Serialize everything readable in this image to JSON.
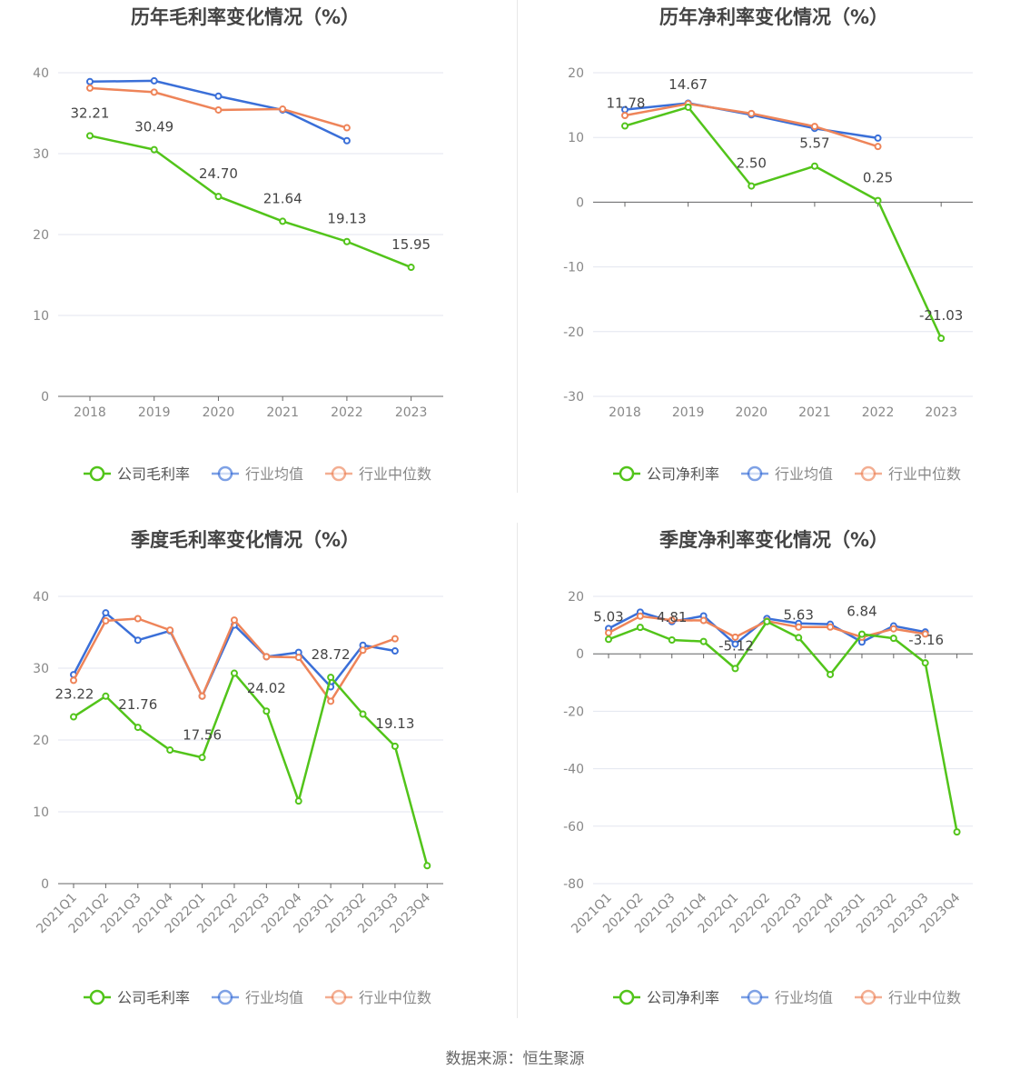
{
  "source_text": "数据来源：恒生聚源",
  "colors": {
    "company": "#52c41a",
    "avg": "#3a6fd8",
    "median": "#ee8459",
    "grid": "#e3e6ef",
    "axis": "#666666",
    "tick_text": "#888888",
    "title": "#444444"
  },
  "chart_data": [
    {
      "type": "line",
      "title": "历年毛利率变化情况（%）",
      "categories": [
        "2018",
        "2019",
        "2020",
        "2021",
        "2022",
        "2023"
      ],
      "ylim": [
        0,
        40
      ],
      "yticks": [
        0,
        10,
        20,
        30,
        40
      ],
      "grid": true,
      "legend": "bottom",
      "series": [
        {
          "name": "公司毛利率",
          "role": "company",
          "values": [
            32.21,
            30.49,
            24.7,
            21.64,
            19.13,
            15.95
          ],
          "labels": [
            "32.21",
            "30.49",
            "24.70",
            "21.64",
            "19.13",
            "15.95"
          ]
        },
        {
          "name": "行业均值",
          "role": "avg",
          "values": [
            38.9,
            39.0,
            37.1,
            35.4,
            31.6,
            null
          ]
        },
        {
          "name": "行业中位数",
          "role": "median",
          "values": [
            38.1,
            37.6,
            35.4,
            35.5,
            33.2,
            null
          ]
        }
      ]
    },
    {
      "type": "line",
      "title": "历年净利率变化情况（%）",
      "categories": [
        "2018",
        "2019",
        "2020",
        "2021",
        "2022",
        "2023"
      ],
      "ylim": [
        -30,
        20
      ],
      "yticks": [
        -30,
        -20,
        -10,
        0,
        10,
        20
      ],
      "grid": true,
      "legend": "bottom",
      "series": [
        {
          "name": "公司净利率",
          "role": "company",
          "values": [
            11.78,
            14.67,
            2.5,
            5.57,
            0.25,
            -21.03
          ],
          "labels": [
            "11.78",
            "14.67",
            "2.50",
            "5.57",
            "0.25",
            "-21.03"
          ]
        },
        {
          "name": "行业均值",
          "role": "avg",
          "values": [
            14.3,
            15.3,
            13.5,
            11.4,
            9.9,
            null
          ]
        },
        {
          "name": "行业中位数",
          "role": "median",
          "values": [
            13.4,
            15.2,
            13.7,
            11.7,
            8.6,
            null
          ]
        }
      ]
    },
    {
      "type": "line",
      "title": "季度毛利率变化情况（%）",
      "categories": [
        "2021Q1",
        "2021Q2",
        "2021Q3",
        "2021Q4",
        "2022Q1",
        "2022Q2",
        "2022Q3",
        "2022Q4",
        "2023Q1",
        "2023Q2",
        "2023Q3",
        "2023Q4"
      ],
      "ylim": [
        0,
        40
      ],
      "yticks": [
        0,
        10,
        20,
        30,
        40
      ],
      "grid": true,
      "legend": "bottom",
      "series": [
        {
          "name": "公司毛利率",
          "role": "company",
          "values": [
            23.22,
            26.1,
            21.76,
            18.6,
            17.56,
            29.3,
            24.02,
            11.5,
            28.72,
            23.6,
            19.13,
            2.5
          ],
          "labels": [
            "23.22",
            null,
            "21.76",
            null,
            "17.56",
            null,
            "24.02",
            null,
            "28.72",
            null,
            "19.13",
            null
          ]
        },
        {
          "name": "行业均值",
          "role": "avg",
          "values": [
            29.1,
            37.7,
            33.9,
            35.2,
            26.1,
            36.0,
            31.6,
            32.2,
            27.4,
            33.2,
            32.4,
            null
          ]
        },
        {
          "name": "行业中位数",
          "role": "median",
          "values": [
            28.3,
            36.6,
            36.9,
            35.3,
            26.1,
            36.7,
            31.6,
            31.5,
            25.4,
            32.5,
            34.1,
            null
          ]
        }
      ]
    },
    {
      "type": "line",
      "title": "季度净利率变化情况（%）",
      "categories": [
        "2021Q1",
        "2021Q2",
        "2021Q3",
        "2021Q4",
        "2022Q1",
        "2022Q2",
        "2022Q3",
        "2022Q4",
        "2023Q1",
        "2023Q2",
        "2023Q3",
        "2023Q4"
      ],
      "ylim": [
        -80,
        20
      ],
      "yticks": [
        -80,
        -60,
        -40,
        -20,
        0,
        20
      ],
      "grid": true,
      "legend": "bottom",
      "series": [
        {
          "name": "公司净利率",
          "role": "company",
          "values": [
            5.03,
            9.2,
            4.81,
            4.3,
            -5.12,
            11.2,
            5.63,
            -7.2,
            6.84,
            5.4,
            -3.16,
            -62.0
          ],
          "labels": [
            "5.03",
            null,
            "4.81",
            null,
            "-5.12",
            null,
            "5.63",
            null,
            "6.84",
            null,
            "-3.16",
            null
          ]
        },
        {
          "name": "行业均值",
          "role": "avg",
          "values": [
            8.8,
            14.5,
            11.2,
            13.2,
            3.4,
            12.3,
            10.6,
            10.3,
            4.1,
            9.7,
            7.6,
            null
          ]
        },
        {
          "name": "行业中位数",
          "role": "median",
          "values": [
            7.3,
            13.1,
            11.7,
            11.6,
            5.8,
            11.4,
            9.3,
            9.3,
            5.8,
            8.7,
            6.9,
            null
          ]
        }
      ]
    }
  ]
}
